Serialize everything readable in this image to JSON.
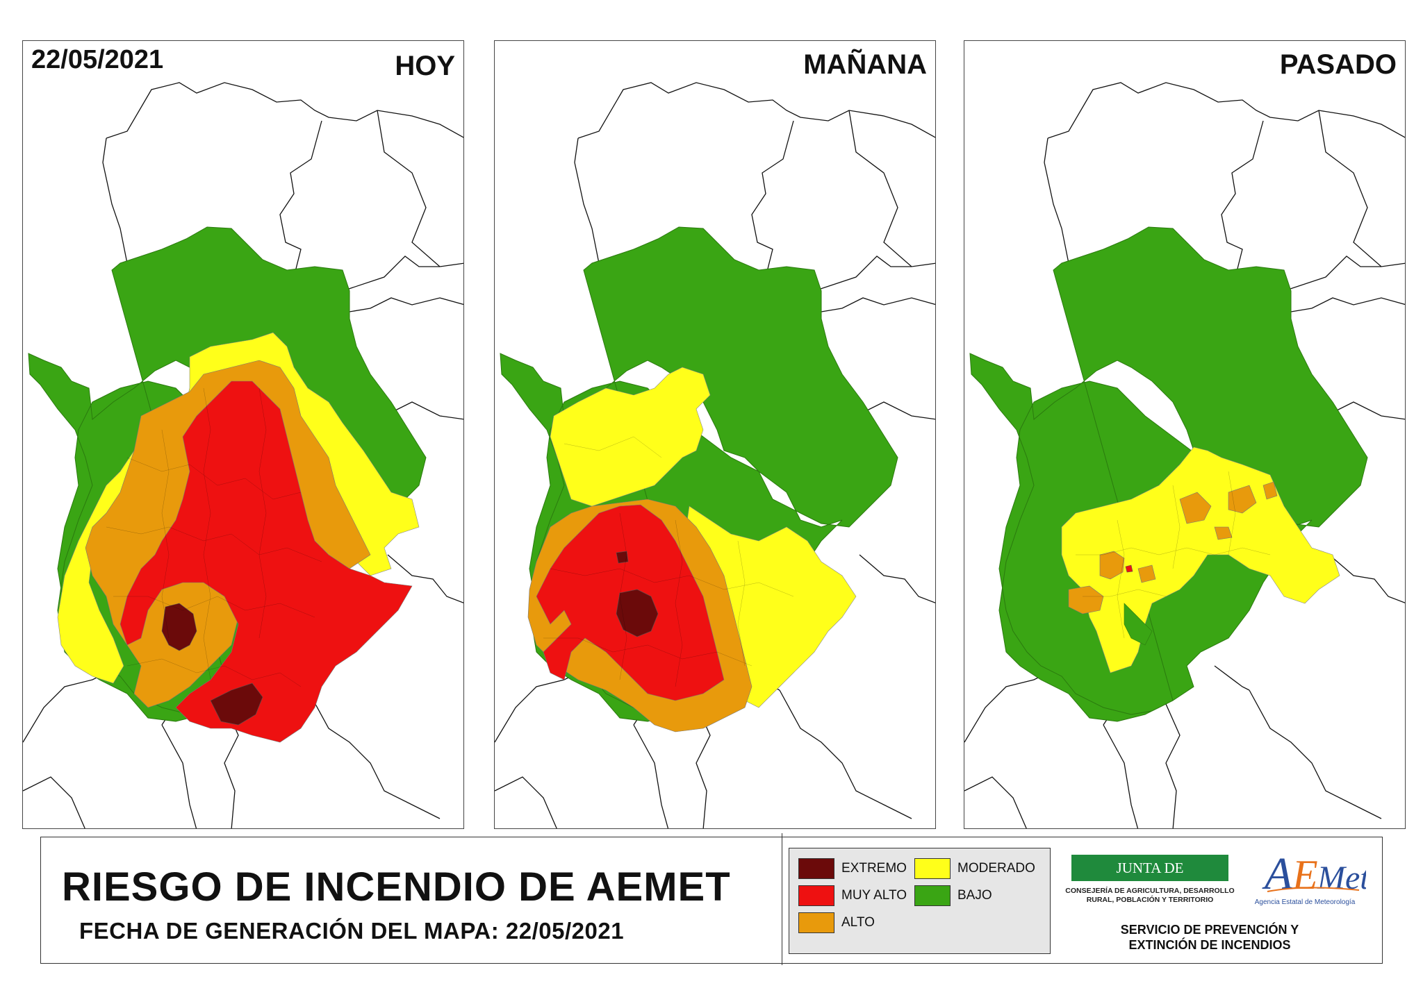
{
  "panels": [
    {
      "label": "HOY",
      "date": "22/05/2021"
    },
    {
      "label": "MAÑANA"
    },
    {
      "label": "PASADO"
    }
  ],
  "footer": {
    "title": "RIESGO DE INCENDIO DE AEMET",
    "subtitle": "FECHA DE GENERACIÓN DEL MAPA: 22/05/2021",
    "legend": [
      {
        "label": "EXTREMO",
        "color": "#6b0a0a"
      },
      {
        "label": "MUY ALTO",
        "color": "#ee1111"
      },
      {
        "label": "ALTO",
        "color": "#e89a0c"
      },
      {
        "label": "MODERADO",
        "color": "#ffff1a"
      },
      {
        "label": "BAJO",
        "color": "#3aa514"
      }
    ],
    "junta": {
      "name": "JUNTA DE EXTREMADURA",
      "dept_line1": "CONSEJERÍA DE AGRICULTURA, DESARROLLO",
      "dept_line2": "RURAL, POBLACIÓN Y TERRITORIO"
    },
    "aemet": {
      "logo_text": "AEMet",
      "subtitle": "Agencia Estatal de Meteorología"
    },
    "service_line1": "SERVICIO DE PREVENCIÓN Y",
    "service_line2": "EXTINCIÓN DE INCENDIOS"
  }
}
